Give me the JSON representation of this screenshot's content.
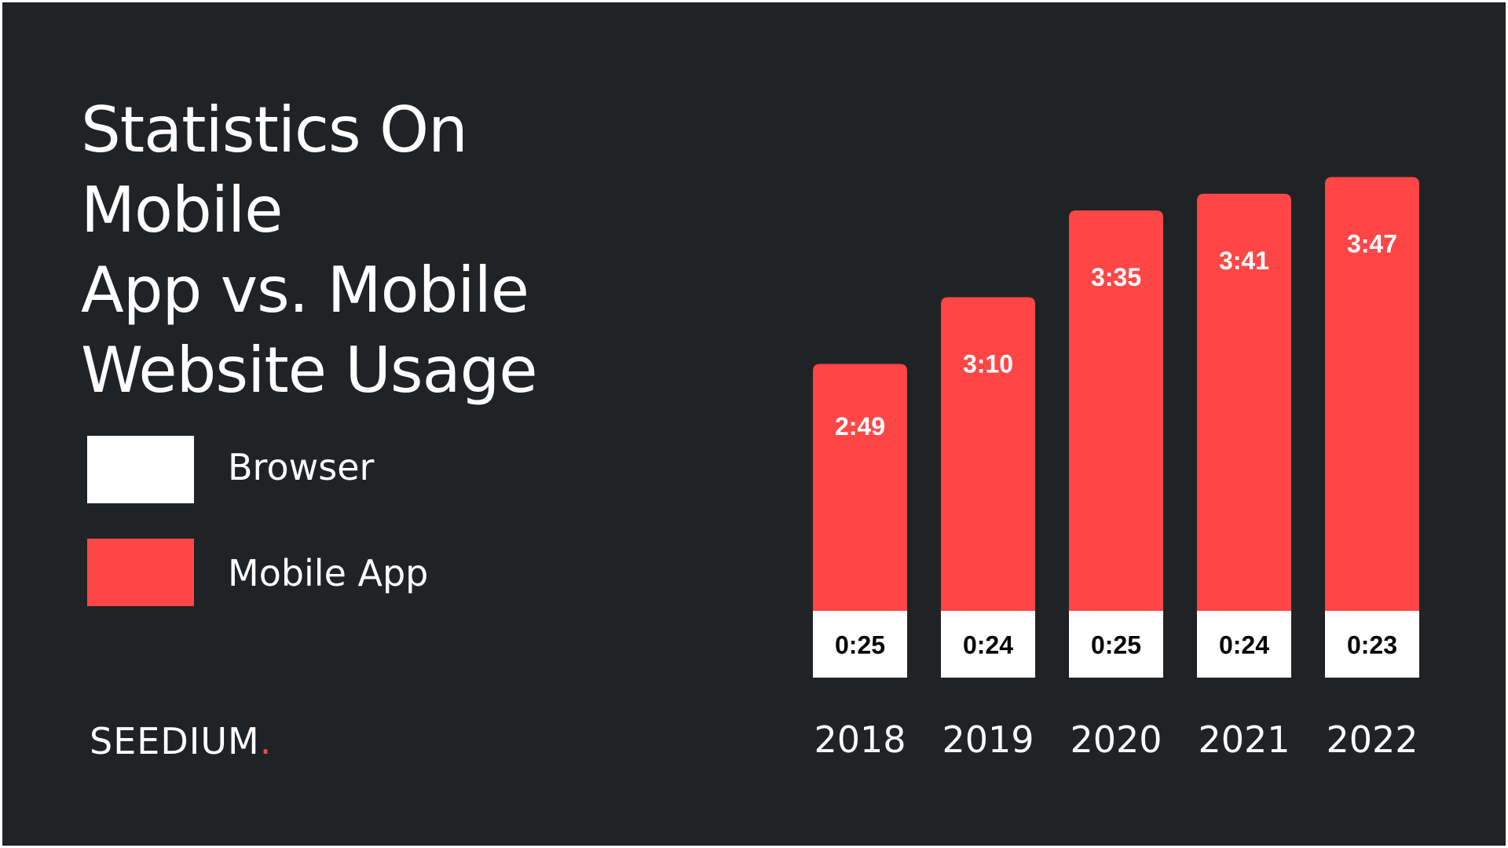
{
  "chart_data": {
    "type": "bar",
    "stacked": true,
    "title": "Statistics On Mobile App vs. Mobile Website Usage",
    "categories": [
      "2018",
      "2019",
      "2020",
      "2021",
      "2022"
    ],
    "series": [
      {
        "name": "Browser",
        "color": "#ffffff",
        "values": [
          "0:25",
          "0:24",
          "0:25",
          "0:24",
          "0:23"
        ]
      },
      {
        "name": "Mobile App",
        "color": "#ff4646",
        "values": [
          "2:49",
          "3:10",
          "3:35",
          "3:41",
          "3:47"
        ]
      }
    ],
    "legend": "left",
    "grid": false,
    "axes_visible": false
  },
  "title_lines": [
    "Statistics On Mobile",
    "App vs. Mobile",
    "Website Usage"
  ],
  "legend": [
    {
      "label": "Browser",
      "color": "#ffffff"
    },
    {
      "label": "Mobile App",
      "color": "#ff4646"
    }
  ],
  "brand": {
    "name": "SEEDIUM",
    "dot": "."
  }
}
